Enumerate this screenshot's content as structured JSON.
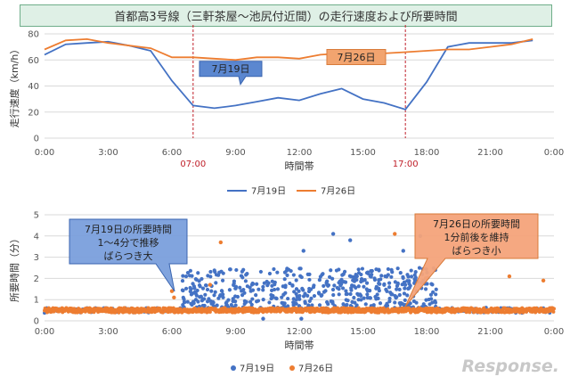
{
  "title": "首都高3号線（三軒茶屋～池尻付近間）の走行速度および所要時間",
  "colors": {
    "series_0719": "#4472c4",
    "series_0726": "#ed7d31",
    "title_bg": "#dff0e6",
    "highlight_red": "#c0202a",
    "grid": "#d9d9d9"
  },
  "watermark": "Response.",
  "chart_data": [
    {
      "type": "line",
      "xlabel": "時間帯",
      "ylabel": "走行速度（km/h）",
      "ylim": [
        0,
        80
      ],
      "yticks": [
        0,
        20,
        40,
        60,
        80
      ],
      "xticks": [
        "0:00",
        "3:00",
        "6:00",
        "9:00",
        "12:00",
        "15:00",
        "18:00",
        "21:00",
        "0:00"
      ],
      "x": [
        0,
        1,
        2,
        3,
        4,
        5,
        6,
        7,
        8,
        9,
        10,
        11,
        12,
        13,
        14,
        15,
        16,
        17,
        18,
        19,
        20,
        21,
        22,
        23
      ],
      "highlight_times": [
        "07:00",
        "17:00"
      ],
      "grid": true,
      "legend_position": "bottom",
      "series": [
        {
          "name": "7月19日",
          "values": [
            64,
            72,
            73,
            74,
            71,
            67,
            44,
            25,
            23,
            25,
            28,
            31,
            29,
            34,
            38,
            30,
            27,
            22,
            43,
            70,
            73,
            73,
            73,
            75
          ]
        },
        {
          "name": "7月26日",
          "values": [
            68,
            75,
            76,
            73,
            71,
            69,
            62,
            62,
            61,
            60,
            62,
            62,
            61,
            64,
            65,
            64,
            65,
            66,
            67,
            68,
            68,
            70,
            72,
            76
          ]
        }
      ],
      "annotations": [
        "7月19日",
        "7月26日"
      ]
    },
    {
      "type": "scatter",
      "xlabel": "時間帯",
      "ylabel": "所要時間（分）",
      "ylim": [
        0,
        5
      ],
      "yticks": [
        0,
        1,
        2,
        3,
        4,
        5
      ],
      "xticks": [
        "0:00",
        "3:00",
        "6:00",
        "9:00",
        "12:00",
        "15:00",
        "18:00",
        "21:00",
        "0:00"
      ],
      "x_range_hours": [
        0,
        24
      ],
      "grid": true,
      "legend_position": "bottom",
      "series": [
        {
          "name": "7月19日",
          "baseline_min": 0.5,
          "congested_range_hours": [
            6.5,
            18.5
          ],
          "congested_min_range": [
            0.6,
            2.5
          ],
          "outliers": [
            [
              10.3,
              0.1
            ],
            [
              12.1,
              0.1
            ],
            [
              12.2,
              3.3
            ],
            [
              13.6,
              4.1
            ],
            [
              14.4,
              3.8
            ],
            [
              16.9,
              3.3
            ],
            [
              17.7,
              4.0
            ]
          ]
        },
        {
          "name": "7月26日",
          "baseline_min": 0.5,
          "outliers": [
            [
              6.0,
              1.4
            ],
            [
              6.1,
              1.1
            ],
            [
              7.8,
              1.7
            ],
            [
              8.3,
              3.7
            ],
            [
              16.5,
              4.1
            ],
            [
              18.0,
              2.0
            ],
            [
              21.9,
              2.1
            ],
            [
              23.5,
              1.9
            ]
          ]
        }
      ],
      "callouts": [
        {
          "lines": [
            "7月19日の所要時間",
            "1～4分で推移",
            "ばらつき大"
          ]
        },
        {
          "lines": [
            "7月26日の所要時間",
            "1分前後を維持",
            "ばらつき小"
          ]
        }
      ]
    }
  ]
}
